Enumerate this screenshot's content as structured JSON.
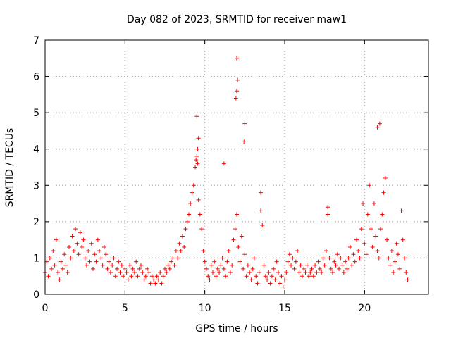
{
  "chart_data": {
    "type": "scatter",
    "title": "Day 082 of 2023, SRMTID for receiver maw1",
    "xlabel": "GPS time / hours",
    "ylabel": "SRMTID / TECUs",
    "xlim": [
      0,
      24
    ],
    "ylim": [
      0,
      7
    ],
    "xticks": [
      0,
      5,
      10,
      15,
      20
    ],
    "yticks": [
      0,
      1,
      2,
      3,
      4,
      5,
      6,
      7
    ],
    "grid": true,
    "marker": "+",
    "series": [
      {
        "name": "SRMTID",
        "color": "#ff0000",
        "x": [
          0.0,
          0.1,
          0.2,
          0.3,
          0.4,
          0.5,
          0.6,
          0.7,
          0.8,
          0.9,
          1.0,
          1.1,
          1.2,
          1.3,
          1.4,
          1.5,
          1.6,
          1.7,
          1.8,
          1.9,
          2.0,
          2.1,
          2.2,
          2.3,
          2.4,
          2.5,
          2.6,
          2.7,
          2.8,
          2.9,
          3.0,
          3.1,
          3.2,
          3.3,
          3.4,
          3.5,
          3.6,
          3.7,
          3.8,
          3.9,
          4.0,
          4.1,
          4.2,
          4.3,
          4.4,
          4.5,
          4.6,
          4.7,
          4.8,
          4.9,
          5.0,
          5.1,
          5.2,
          5.3,
          5.4,
          5.5,
          5.6,
          5.7,
          5.8,
          5.9,
          6.0,
          6.1,
          6.2,
          6.3,
          6.4,
          6.5,
          6.6,
          6.7,
          6.8,
          6.9,
          7.0,
          7.1,
          7.2,
          7.3,
          7.4,
          7.5,
          7.6,
          7.7,
          7.8,
          7.9,
          8.0,
          8.1,
          8.2,
          8.3,
          8.4,
          8.5,
          8.6,
          8.7,
          8.8,
          8.9,
          9.0,
          9.1,
          9.2,
          9.3,
          9.4,
          9.5,
          9.6,
          9.7,
          9.8,
          9.9,
          10.0,
          10.1,
          10.2,
          10.3,
          10.4,
          10.5,
          10.6,
          10.7,
          10.8,
          10.9,
          11.0,
          11.1,
          11.2,
          11.3,
          11.4,
          11.5,
          11.6,
          11.7,
          11.8,
          11.9,
          12.0,
          12.1,
          12.2,
          12.3,
          12.4,
          12.5,
          12.6,
          12.7,
          12.8,
          12.9,
          13.0,
          13.1,
          13.2,
          13.3,
          13.4,
          13.5,
          13.6,
          13.7,
          13.8,
          13.9,
          14.0,
          14.1,
          14.2,
          14.3,
          14.4,
          14.5,
          14.6,
          14.7,
          14.8,
          14.9,
          15.0,
          15.1,
          15.2,
          15.3,
          15.4,
          15.5,
          15.6,
          15.7,
          15.8,
          15.9,
          16.0,
          16.1,
          16.2,
          16.3,
          16.4,
          16.5,
          16.6,
          16.7,
          16.8,
          16.9,
          17.0,
          17.1,
          17.2,
          17.3,
          17.4,
          17.5,
          17.6,
          17.7,
          17.8,
          17.9,
          18.0,
          18.1,
          18.2,
          18.3,
          18.4,
          18.5,
          18.6,
          18.7,
          18.8,
          18.9,
          19.0,
          19.1,
          19.2,
          19.3,
          19.4,
          19.5,
          19.6,
          19.7,
          19.8,
          19.9,
          20.0,
          20.1,
          20.2,
          20.3,
          20.4,
          20.5,
          20.6,
          20.7,
          20.8,
          20.9,
          21.0,
          21.1,
          21.2,
          21.3,
          21.4,
          21.5,
          21.6,
          21.7,
          21.8,
          21.9,
          22.0,
          22.1,
          22.2,
          22.3,
          22.4,
          22.5,
          22.6,
          22.7,
          9.5,
          9.6,
          9.55,
          12.0,
          12.05,
          12.0,
          11.95,
          12.5,
          12.45,
          11.2,
          20.8,
          20.95,
          9.45,
          9.55,
          17.7,
          13.5
        ],
        "y": [
          0.6,
          0.9,
          0.5,
          1.0,
          0.7,
          1.2,
          0.8,
          1.5,
          0.6,
          0.4,
          0.9,
          0.7,
          1.1,
          0.8,
          0.6,
          1.3,
          1.0,
          1.6,
          1.2,
          1.8,
          1.4,
          1.1,
          1.7,
          1.3,
          1.5,
          1.0,
          0.8,
          1.2,
          0.9,
          1.4,
          0.7,
          1.1,
          0.9,
          1.5,
          1.2,
          1.0,
          0.8,
          1.3,
          1.1,
          0.7,
          0.9,
          0.6,
          0.8,
          1.0,
          0.5,
          0.7,
          0.9,
          0.6,
          0.8,
          0.5,
          0.7,
          0.6,
          0.4,
          0.8,
          0.5,
          0.7,
          0.6,
          0.9,
          0.5,
          0.7,
          0.8,
          0.6,
          0.4,
          0.5,
          0.7,
          0.6,
          0.3,
          0.5,
          0.4,
          0.3,
          0.5,
          0.4,
          0.6,
          0.3,
          0.5,
          0.7,
          0.6,
          0.8,
          0.7,
          0.9,
          1.0,
          0.8,
          1.2,
          1.0,
          1.4,
          1.2,
          1.6,
          1.3,
          1.8,
          2.0,
          2.2,
          2.5,
          2.8,
          3.0,
          3.5,
          3.8,
          2.6,
          2.2,
          1.8,
          1.2,
          0.9,
          0.7,
          0.5,
          0.4,
          0.8,
          0.6,
          0.9,
          0.5,
          0.7,
          0.6,
          0.8,
          1.0,
          0.7,
          0.5,
          0.9,
          1.2,
          0.6,
          0.8,
          1.5,
          1.8,
          2.2,
          1.3,
          0.9,
          1.6,
          0.7,
          1.1,
          0.5,
          0.8,
          0.6,
          0.4,
          0.7,
          1.0,
          0.5,
          0.3,
          0.6,
          2.8,
          1.9,
          0.8,
          0.5,
          0.4,
          0.6,
          0.3,
          0.5,
          0.7,
          0.4,
          0.9,
          0.6,
          0.3,
          0.5,
          0.2,
          0.4,
          0.6,
          0.9,
          1.1,
          0.8,
          1.0,
          0.7,
          0.9,
          1.2,
          0.6,
          0.8,
          0.5,
          0.7,
          0.6,
          0.8,
          0.5,
          0.6,
          0.7,
          0.5,
          0.8,
          0.6,
          0.9,
          0.7,
          0.6,
          1.0,
          0.8,
          1.2,
          2.2,
          1.0,
          0.7,
          0.6,
          0.9,
          0.8,
          1.1,
          0.7,
          1.0,
          0.8,
          0.6,
          0.9,
          0.7,
          1.0,
          1.3,
          0.8,
          1.1,
          0.9,
          1.5,
          1.2,
          1.0,
          1.8,
          2.5,
          1.4,
          1.1,
          2.2,
          3.0,
          1.8,
          1.3,
          2.5,
          1.6,
          1.2,
          1.0,
          1.8,
          2.2,
          2.8,
          3.2,
          1.5,
          1.0,
          0.8,
          1.2,
          0.6,
          0.9,
          1.4,
          1.1,
          0.7,
          2.3,
          1.5,
          1.0,
          0.6,
          0.4,
          4.9,
          4.3,
          4.0,
          6.5,
          5.9,
          5.6,
          5.4,
          4.7,
          4.2,
          3.6,
          4.6,
          4.7,
          3.7,
          3.6,
          2.4,
          2.3
        ]
      }
    ]
  }
}
